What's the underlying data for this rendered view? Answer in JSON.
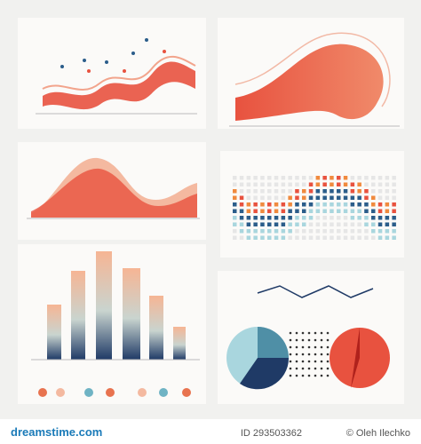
{
  "footer": {
    "site": "dreamstime.com",
    "id": "ID 293503362",
    "author": "© Oleh Ilechko"
  }
}
